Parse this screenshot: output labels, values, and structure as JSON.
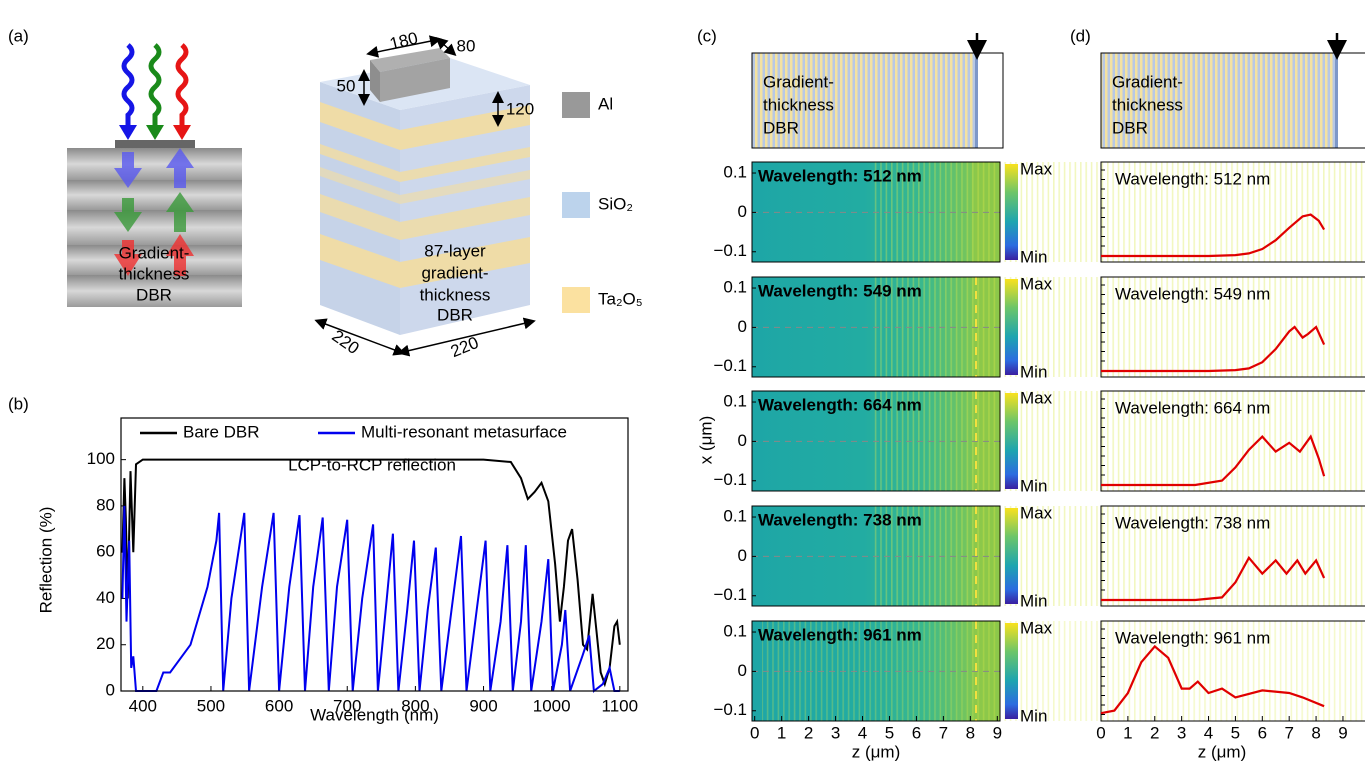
{
  "panels": [
    "(a)",
    "(b)",
    "(c)",
    "(d)"
  ],
  "panel_a": {
    "dbr_label": [
      "Gradient-",
      "thickness",
      "DBR"
    ],
    "dimensions": [
      "180",
      "80",
      "50",
      "120",
      "220",
      "220"
    ],
    "materials": [
      "Al",
      "SiO₂",
      "Ta₂O₅"
    ],
    "stack_label": [
      "87-layer",
      "gradient-",
      "thickness",
      "DBR"
    ]
  },
  "chart_data": {
    "type": "line",
    "xlabel": "Wavelength (nm)",
    "ylabel": "Reflection (%)",
    "annotation": "LCP-to-RCP reflection",
    "xlim": [
      368,
      1112
    ],
    "ylim": [
      0,
      118
    ],
    "xticks": [
      400,
      500,
      600,
      700,
      800,
      900,
      1000,
      1100
    ],
    "yticks": [
      0,
      20,
      40,
      60,
      80,
      100
    ],
    "series": [
      {
        "name": "Bare DBR",
        "color": "#000000",
        "x": [
          370,
          373,
          375,
          378,
          382,
          386,
          390,
          400,
          450,
          500,
          600,
          700,
          800,
          900,
          940,
          955,
          965,
          975,
          985,
          995,
          1005,
          1012,
          1018,
          1024,
          1030,
          1038,
          1046,
          1052,
          1060,
          1066,
          1072,
          1078,
          1085,
          1092,
          1096,
          1100
        ],
        "values": [
          60,
          92,
          75,
          40,
          95,
          60,
          98,
          100,
          100,
          100,
          100,
          100,
          100,
          100,
          99,
          92,
          83,
          86,
          90,
          82,
          55,
          30,
          45,
          65,
          70,
          48,
          20,
          18,
          42,
          25,
          8,
          3,
          10,
          28,
          30,
          20
        ]
      },
      {
        "name": "Multi-resonant metasurface",
        "color": "#0000ee",
        "x": [
          370,
          373,
          376,
          380,
          383,
          386,
          390,
          420,
          430,
          440,
          470,
          495,
          508,
          512,
          518,
          530,
          549,
          556,
          575,
          592,
          600,
          615,
          630,
          638,
          650,
          664,
          673,
          685,
          700,
          708,
          722,
          738,
          745,
          758,
          767,
          775,
          788,
          798,
          806,
          818,
          830,
          838,
          853,
          867,
          875,
          890,
          903,
          910,
          925,
          935,
          943,
          955,
          962,
          970,
          985,
          995,
          1002,
          1015,
          1020,
          1027,
          1045,
          1055,
          1062,
          1075,
          1085,
          1092,
          1100
        ],
        "values": [
          40,
          80,
          30,
          65,
          10,
          15,
          0,
          0,
          8,
          8,
          20,
          45,
          65,
          77,
          0,
          40,
          77,
          0,
          45,
          77,
          0,
          45,
          76,
          0,
          45,
          75,
          0,
          45,
          74,
          0,
          40,
          72,
          0,
          40,
          68,
          0,
          35,
          65,
          0,
          35,
          62,
          0,
          35,
          67,
          0,
          35,
          65,
          0,
          30,
          63,
          0,
          30,
          63,
          0,
          30,
          57,
          0,
          20,
          35,
          0,
          15,
          24,
          0,
          3,
          10,
          0,
          0
        ]
      }
    ],
    "legend": "top"
  },
  "panel_c": {
    "schematic_label": [
      "Gradient-",
      "thickness",
      "DBR"
    ],
    "ylabel": "x (μm)",
    "xlabel": "z (μm)",
    "xlim": [
      -0.1,
      9.1
    ],
    "ylim": [
      -0.126,
      0.128
    ],
    "xticks": [
      0,
      1,
      2,
      3,
      4,
      5,
      6,
      7,
      8,
      9
    ],
    "yticks": [
      0.1,
      0,
      {
        "value": -0.1,
        "label": "−0.1"
      }
    ],
    "wavelengths": [
      "Wavelength: 512 nm",
      "Wavelength: 549 nm",
      "Wavelength: 664 nm",
      "Wavelength: 738 nm",
      "Wavelength: 961 nm"
    ],
    "colorbar": [
      "Max",
      "Min"
    ]
  },
  "panel_d": {
    "xlabel": "z (μm)",
    "xlim": [
      0,
      9.82
    ],
    "ylim": [
      0,
      1
    ],
    "xticks": [
      0,
      1,
      2,
      3,
      4,
      5,
      6,
      7,
      8,
      9
    ],
    "color": "#e00000",
    "rows": [
      {
        "x": [
          0,
          2,
          4,
          5,
          5.5,
          6,
          6.5,
          7,
          7.5,
          7.8,
          8.1,
          8.3
        ],
        "values": [
          0,
          0,
          0,
          0.01,
          0.03,
          0.08,
          0.18,
          0.32,
          0.45,
          0.47,
          0.4,
          0.3
        ]
      },
      {
        "x": [
          0,
          2,
          4,
          5,
          5.5,
          6,
          6.5,
          7,
          7.2,
          7.5,
          7.7,
          8.0,
          8.3
        ],
        "values": [
          0,
          0,
          0,
          0.01,
          0.03,
          0.1,
          0.25,
          0.45,
          0.5,
          0.38,
          0.42,
          0.5,
          0.3
        ]
      },
      {
        "x": [
          0,
          2,
          3.5,
          4.5,
          5,
          5.5,
          6,
          6.5,
          7,
          7.4,
          7.8,
          8.1,
          8.3
        ],
        "values": [
          0,
          0,
          0,
          0.05,
          0.2,
          0.4,
          0.55,
          0.38,
          0.48,
          0.38,
          0.55,
          0.3,
          0.1
        ]
      },
      {
        "x": [
          0,
          2,
          3.5,
          4.5,
          5,
          5.5,
          6,
          6.5,
          6.9,
          7.3,
          7.6,
          8.0,
          8.3
        ],
        "values": [
          0,
          0,
          0,
          0.03,
          0.2,
          0.48,
          0.3,
          0.45,
          0.3,
          0.45,
          0.3,
          0.45,
          0.25
        ]
      },
      {
        "x": [
          0,
          0.5,
          1,
          1.5,
          2,
          2.5,
          3,
          3.3,
          3.6,
          4,
          4.5,
          5,
          6,
          7,
          7.5,
          8.3
        ],
        "values": [
          0.02,
          0.05,
          0.25,
          0.6,
          0.78,
          0.65,
          0.3,
          0.3,
          0.38,
          0.25,
          0.3,
          0.2,
          0.28,
          0.25,
          0.2,
          0.1
        ]
      }
    ]
  }
}
